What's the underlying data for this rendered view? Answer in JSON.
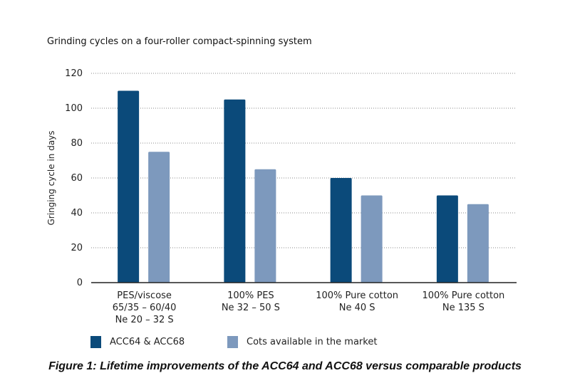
{
  "chart_data": {
    "type": "bar",
    "title": "Grinding cycles on a four-roller compact-spinning system",
    "ylabel": "Gringing cycle in days",
    "xlabel": "",
    "ylim": [
      0,
      120
    ],
    "yticks": [
      0,
      20,
      40,
      60,
      80,
      100,
      120
    ],
    "grid": true,
    "legend_position": "bottom-left",
    "categories": [
      [
        "PES/viscose",
        "65/35 – 60/40",
        "Ne 20 – 32 S"
      ],
      [
        "100% PES",
        "Ne 32 – 50 S"
      ],
      [
        "100% Pure cotton",
        "Ne 40 S"
      ],
      [
        "100% Pure cotton",
        "Ne 135 S"
      ]
    ],
    "series": [
      {
        "name": "ACC64 & ACC68",
        "color": "#0b4a7a",
        "values": [
          110,
          105,
          60,
          50
        ]
      },
      {
        "name": "Cots available in the market",
        "color": "#7d99bd",
        "values": [
          75,
          65,
          50,
          45
        ]
      }
    ]
  },
  "caption": "Figure 1: Lifetime improvements of the ACC64 and ACC68 versus comparable products"
}
